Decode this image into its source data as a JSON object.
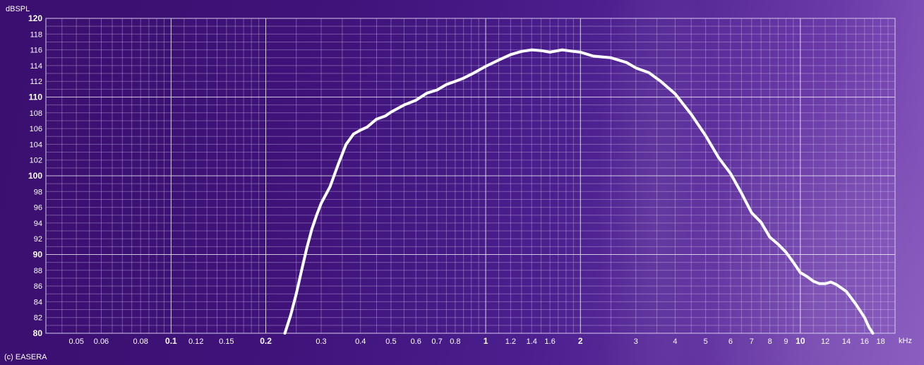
{
  "chart_data": {
    "type": "line",
    "title": "",
    "ylabel": "dBSPL",
    "xlabel": "kHz",
    "xscale": "log",
    "xlim": [
      0.04,
      20
    ],
    "ylim": [
      80,
      120
    ],
    "grid": true,
    "y_ticks": [
      {
        "value": 80,
        "label": "80"
      },
      {
        "value": 82,
        "label": "82"
      },
      {
        "value": 84,
        "label": "84"
      },
      {
        "value": 86,
        "label": "86"
      },
      {
        "value": 88,
        "label": "88"
      },
      {
        "value": 90,
        "label": "90"
      },
      {
        "value": 92,
        "label": "92"
      },
      {
        "value": 94,
        "label": "94"
      },
      {
        "value": 96,
        "label": "96"
      },
      {
        "value": 98,
        "label": "98"
      },
      {
        "value": 100,
        "label": "100"
      },
      {
        "value": 102,
        "label": "102"
      },
      {
        "value": 104,
        "label": "104"
      },
      {
        "value": 106,
        "label": "106"
      },
      {
        "value": 108,
        "label": "108"
      },
      {
        "value": 110,
        "label": "110"
      },
      {
        "value": 112,
        "label": "112"
      },
      {
        "value": 114,
        "label": "114"
      },
      {
        "value": 116,
        "label": "116"
      },
      {
        "value": 118,
        "label": "118"
      },
      {
        "value": 120,
        "label": "120"
      }
    ],
    "x_ticks": [
      {
        "value": 0.05,
        "label": "0.05"
      },
      {
        "value": 0.06,
        "label": "0.06"
      },
      {
        "value": 0.08,
        "label": "0.08"
      },
      {
        "value": 0.1,
        "label": "0.1"
      },
      {
        "value": 0.12,
        "label": "0.12"
      },
      {
        "value": 0.15,
        "label": "0.15"
      },
      {
        "value": 0.2,
        "label": "0.2"
      },
      {
        "value": 0.3,
        "label": "0.3"
      },
      {
        "value": 0.4,
        "label": "0.4"
      },
      {
        "value": 0.5,
        "label": "0.5"
      },
      {
        "value": 0.6,
        "label": "0.6"
      },
      {
        "value": 0.7,
        "label": "0.7"
      },
      {
        "value": 0.8,
        "label": "0.8"
      },
      {
        "value": 1,
        "label": "1"
      },
      {
        "value": 1.2,
        "label": "1.2"
      },
      {
        "value": 1.4,
        "label": "1.4"
      },
      {
        "value": 1.6,
        "label": "1.6"
      },
      {
        "value": 2,
        "label": "2"
      },
      {
        "value": 3,
        "label": "3"
      },
      {
        "value": 4,
        "label": "4"
      },
      {
        "value": 5,
        "label": "5"
      },
      {
        "value": 6,
        "label": "6"
      },
      {
        "value": 7,
        "label": "7"
      },
      {
        "value": 8,
        "label": "8"
      },
      {
        "value": 9,
        "label": "9"
      },
      {
        "value": 10,
        "label": "10"
      },
      {
        "value": 12,
        "label": "12"
      },
      {
        "value": 14,
        "label": "14"
      },
      {
        "value": 16,
        "label": "16"
      },
      {
        "value": 18,
        "label": "18"
      }
    ],
    "major_x_ticks": [
      0.1,
      0.2,
      1,
      2,
      10
    ],
    "major_y_ticks": [
      80,
      90,
      100,
      110,
      120
    ],
    "series": [
      {
        "color": "#ffffff",
        "x": [
          0.23,
          0.24,
          0.25,
          0.26,
          0.27,
          0.28,
          0.29,
          0.3,
          0.32,
          0.34,
          0.36,
          0.38,
          0.4,
          0.42,
          0.45,
          0.48,
          0.5,
          0.55,
          0.6,
          0.65,
          0.7,
          0.75,
          0.8,
          0.85,
          0.9,
          1.0,
          1.1,
          1.2,
          1.3,
          1.4,
          1.5,
          1.6,
          1.75,
          1.9,
          2.0,
          2.2,
          2.5,
          2.8,
          3.0,
          3.3,
          3.6,
          4.0,
          4.5,
          5.0,
          5.5,
          6.0,
          6.5,
          7.0,
          7.5,
          8.0,
          8.5,
          9.0,
          9.5,
          10.0,
          10.5,
          11.0,
          11.5,
          12.0,
          12.5,
          13.0,
          14.0,
          15.0,
          16.0,
          16.5,
          17.0
        ],
        "y": [
          80,
          82.3,
          85,
          88,
          90.8,
          93.2,
          95,
          96.5,
          98.6,
          101.5,
          104,
          105.3,
          105.8,
          106.2,
          107.2,
          107.6,
          108.1,
          109.0,
          109.6,
          110.5,
          110.9,
          111.6,
          112.0,
          112.4,
          112.9,
          113.9,
          114.7,
          115.4,
          115.8,
          116.0,
          115.9,
          115.7,
          116.0,
          115.8,
          115.7,
          115.2,
          115.0,
          114.4,
          113.7,
          113.1,
          112.0,
          110.4,
          107.8,
          105.1,
          102.3,
          100.3,
          97.8,
          95.3,
          94.1,
          92.2,
          91.3,
          90.3,
          89.0,
          87.7,
          87.2,
          86.6,
          86.3,
          86.3,
          86.5,
          86.2,
          85.3,
          83.7,
          82.0,
          80.8,
          80.0
        ]
      }
    ]
  },
  "footer": {
    "copyright": "(c) EASERA"
  }
}
